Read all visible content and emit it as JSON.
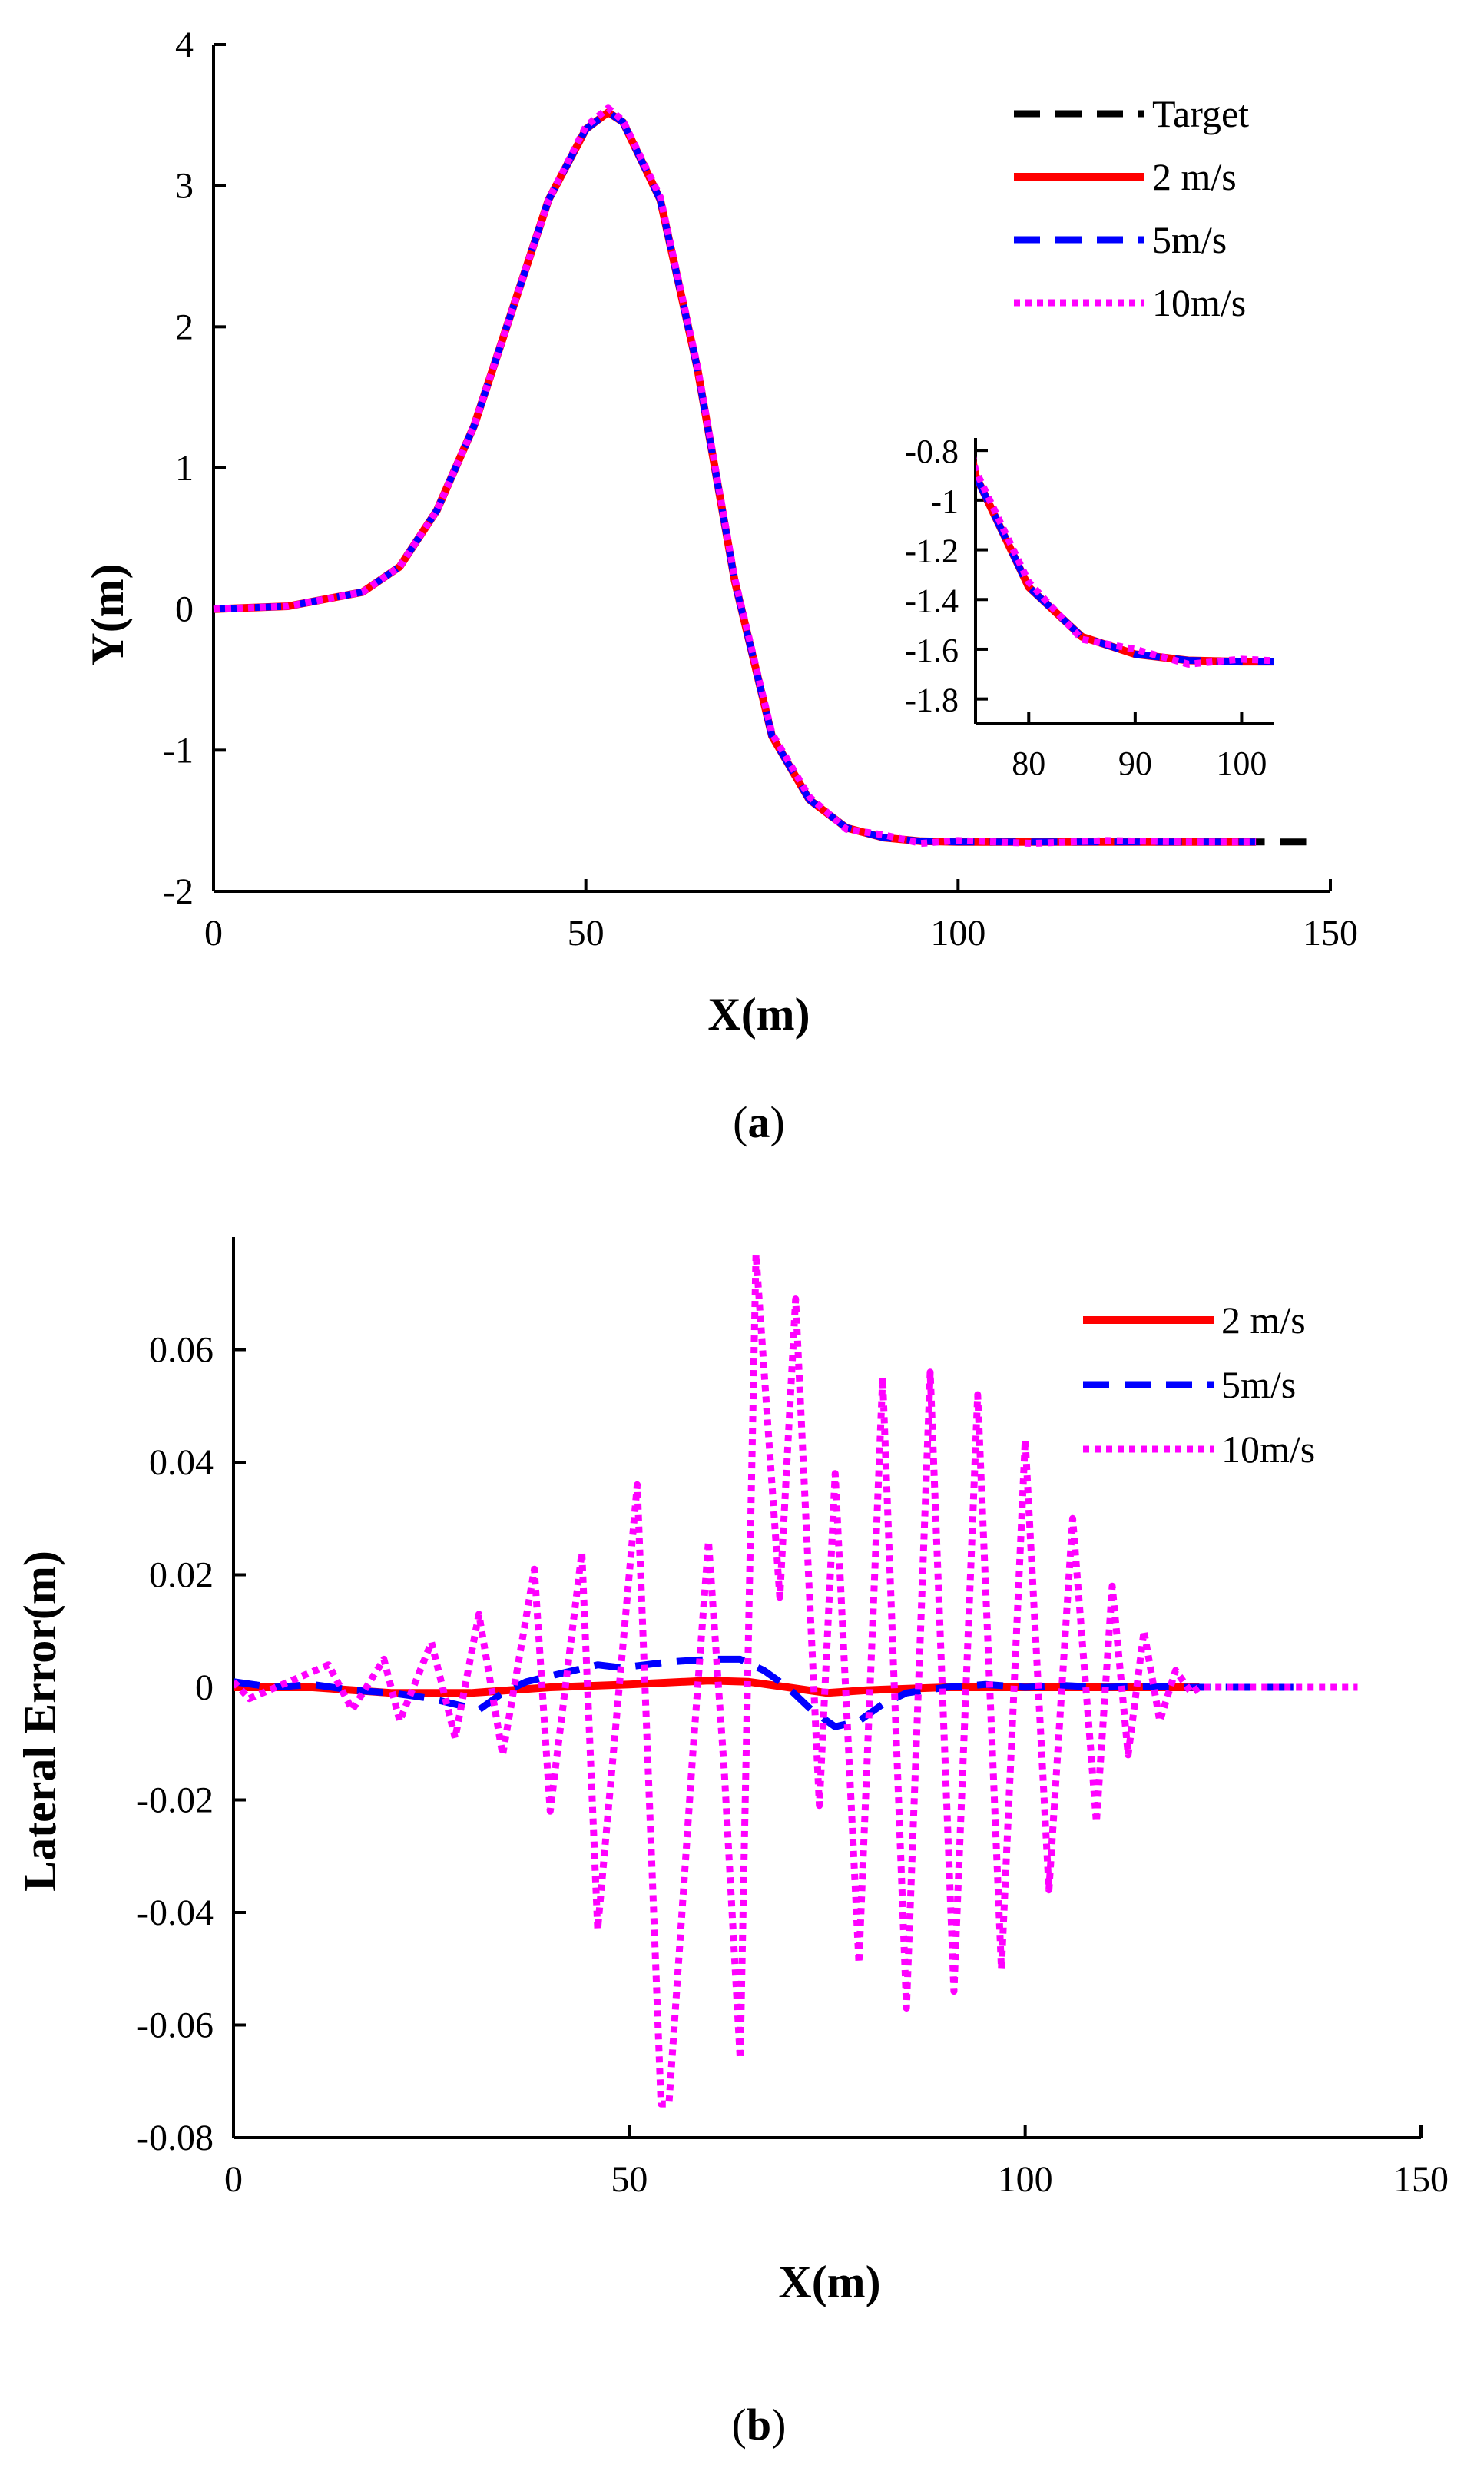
{
  "colors": {
    "target": "#000000",
    "speed_2": "#ff0000",
    "speed_5": "#0000ff",
    "speed_10": "#ff00ff"
  },
  "chart_data": [
    {
      "id": "a",
      "type": "line",
      "caption_label": "a",
      "xlabel": "X(m)",
      "ylabel": "Y(m)",
      "xlim": [
        0,
        150
      ],
      "ylim": [
        -2,
        4
      ],
      "xticks": [
        0,
        50,
        100,
        150
      ],
      "yticks": [
        -2,
        -1,
        0,
        1,
        2,
        3,
        4
      ],
      "legend": {
        "placement": "top-right",
        "entries": [
          "Target",
          "2 m/s",
          "5m/s",
          "10m/s"
        ]
      },
      "series": [
        {
          "name": "Target",
          "style": "dashed",
          "color": "#000000",
          "x": [
            0,
            10,
            20,
            25,
            30,
            35,
            40,
            45,
            50,
            53,
            55,
            60,
            65,
            70,
            75,
            80,
            85,
            90,
            95,
            100,
            110,
            120,
            130,
            140,
            148
          ],
          "y": [
            0,
            0.02,
            0.12,
            0.3,
            0.7,
            1.3,
            2.1,
            2.9,
            3.4,
            3.52,
            3.45,
            2.9,
            1.7,
            0.2,
            -0.9,
            -1.35,
            -1.55,
            -1.62,
            -1.645,
            -1.65,
            -1.65,
            -1.65,
            -1.65,
            -1.65,
            -1.65
          ]
        },
        {
          "name": "2 m/s",
          "style": "solid",
          "color": "#ff0000",
          "x": [
            0,
            10,
            20,
            25,
            30,
            35,
            40,
            45,
            50,
            53,
            55,
            60,
            65,
            70,
            75,
            80,
            85,
            90,
            95,
            100,
            110,
            120,
            130,
            140
          ],
          "y": [
            0,
            0.02,
            0.12,
            0.3,
            0.7,
            1.3,
            2.1,
            2.9,
            3.4,
            3.52,
            3.45,
            2.9,
            1.7,
            0.2,
            -0.9,
            -1.35,
            -1.55,
            -1.62,
            -1.645,
            -1.65,
            -1.65,
            -1.65,
            -1.65,
            -1.65
          ]
        },
        {
          "name": "5m/s",
          "style": "dashed",
          "color": "#0000ff",
          "x": [
            0,
            10,
            20,
            25,
            30,
            35,
            40,
            45,
            50,
            53,
            55,
            60,
            65,
            70,
            75,
            80,
            85,
            90,
            95,
            100,
            110,
            120,
            130,
            140
          ],
          "y": [
            0,
            0.02,
            0.12,
            0.3,
            0.7,
            1.3,
            2.1,
            2.9,
            3.4,
            3.52,
            3.45,
            2.9,
            1.7,
            0.2,
            -0.9,
            -1.35,
            -1.55,
            -1.62,
            -1.645,
            -1.65,
            -1.65,
            -1.65,
            -1.65,
            -1.65
          ]
        },
        {
          "name": "10m/s",
          "style": "dotted",
          "color": "#ff00ff",
          "x": [
            0,
            10,
            20,
            25,
            30,
            35,
            40,
            45,
            50,
            53,
            55,
            60,
            65,
            70,
            75,
            80,
            85,
            90,
            95,
            100,
            110,
            120,
            130,
            140
          ],
          "y": [
            0,
            0.02,
            0.12,
            0.3,
            0.7,
            1.3,
            2.1,
            2.9,
            3.42,
            3.55,
            3.46,
            2.92,
            1.72,
            0.22,
            -0.88,
            -1.33,
            -1.56,
            -1.6,
            -1.66,
            -1.64,
            -1.66,
            -1.64,
            -1.65,
            -1.65
          ]
        }
      ],
      "inset": {
        "xlim": [
          75,
          103
        ],
        "ylim": [
          -1.9,
          -0.75
        ],
        "xticks": [
          80,
          90,
          100
        ],
        "yticks": [
          -0.8,
          -1,
          -1.2,
          -1.4,
          -1.6,
          -1.8
        ],
        "ytick_labels": [
          "-0.8",
          "-1",
          "-1.2",
          "-1.4",
          "-1.6",
          "-1.8"
        ]
      }
    },
    {
      "id": "b",
      "type": "line",
      "caption_label": "b",
      "xlabel": "X(m)",
      "ylabel": "Lateral Error(m)",
      "xlim": [
        0,
        150
      ],
      "ylim": [
        -0.08,
        0.08
      ],
      "xticks": [
        0,
        50,
        100,
        150
      ],
      "yticks": [
        -0.08,
        -0.06,
        -0.04,
        -0.02,
        0,
        0.02,
        0.04,
        0.06
      ],
      "ytick_labels": [
        "-0.08",
        "-0.06",
        "-0.04",
        "-0.02",
        "0",
        "0.02",
        "0.04",
        "0.06"
      ],
      "legend": {
        "placement": "top-right",
        "entries": [
          "2 m/s",
          "5m/s",
          "10m/s"
        ]
      },
      "series": [
        {
          "name": "2 m/s",
          "style": "solid",
          "color": "#ff0000",
          "x": [
            0,
            10,
            20,
            30,
            40,
            50,
            60,
            65,
            70,
            75,
            80,
            90,
            100,
            110,
            120,
            122
          ],
          "y": [
            0,
            0,
            -0.001,
            -0.001,
            0,
            0.0005,
            0.0012,
            0.001,
            0,
            -0.001,
            -0.0005,
            0,
            0,
            0,
            0,
            0
          ]
        },
        {
          "name": "5m/s",
          "style": "dashed",
          "color": "#0000ff",
          "x": [
            0,
            5,
            10,
            15,
            20,
            25,
            28,
            31,
            34,
            37,
            40,
            43,
            46,
            49,
            52,
            55,
            58,
            61,
            64,
            67,
            70,
            73,
            76,
            79,
            82,
            85,
            90,
            95,
            100,
            105,
            110,
            115,
            120,
            125,
            130,
            135
          ],
          "y": [
            0.001,
            0,
            0.0005,
            -0.0005,
            -0.001,
            -0.002,
            -0.003,
            -0.004,
            -0.001,
            0.001,
            0.002,
            0.003,
            0.004,
            0.0035,
            0.004,
            0.0045,
            0.0048,
            0.005,
            0.005,
            0.003,
            0,
            -0.004,
            -0.007,
            -0.006,
            -0.003,
            -0.001,
            0,
            0.0005,
            0,
            0.0003,
            0,
            0.0002,
            0,
            0,
            0,
            0
          ]
        },
        {
          "name": "10m/s",
          "style": "dotted",
          "color": "#ff00ff",
          "x": [
            0,
            2,
            12,
            15,
            19,
            21,
            25,
            28,
            31,
            34,
            38,
            40,
            44,
            46,
            51,
            54,
            55,
            58,
            60,
            62,
            64,
            66,
            69,
            71,
            74,
            76,
            79,
            82,
            85,
            88,
            91,
            94,
            97,
            100,
            103,
            106,
            109,
            111,
            113,
            115,
            117,
            119,
            121,
            122,
            130,
            142
          ],
          "y": [
            0.001,
            -0.002,
            0.004,
            -0.004,
            0.005,
            -0.006,
            0.008,
            -0.009,
            0.013,
            -0.012,
            0.021,
            -0.022,
            0.024,
            -0.043,
            0.036,
            -0.074,
            -0.074,
            -0.012,
            0.026,
            -0.015,
            -0.066,
            0.077,
            0.016,
            0.069,
            -0.021,
            0.038,
            -0.049,
            0.055,
            -0.057,
            0.056,
            -0.054,
            0.052,
            -0.05,
            0.044,
            -0.036,
            0.03,
            -0.024,
            0.018,
            -0.012,
            0.01,
            -0.006,
            0.003,
            -0.001,
            0,
            0,
            0
          ]
        }
      ]
    }
  ]
}
